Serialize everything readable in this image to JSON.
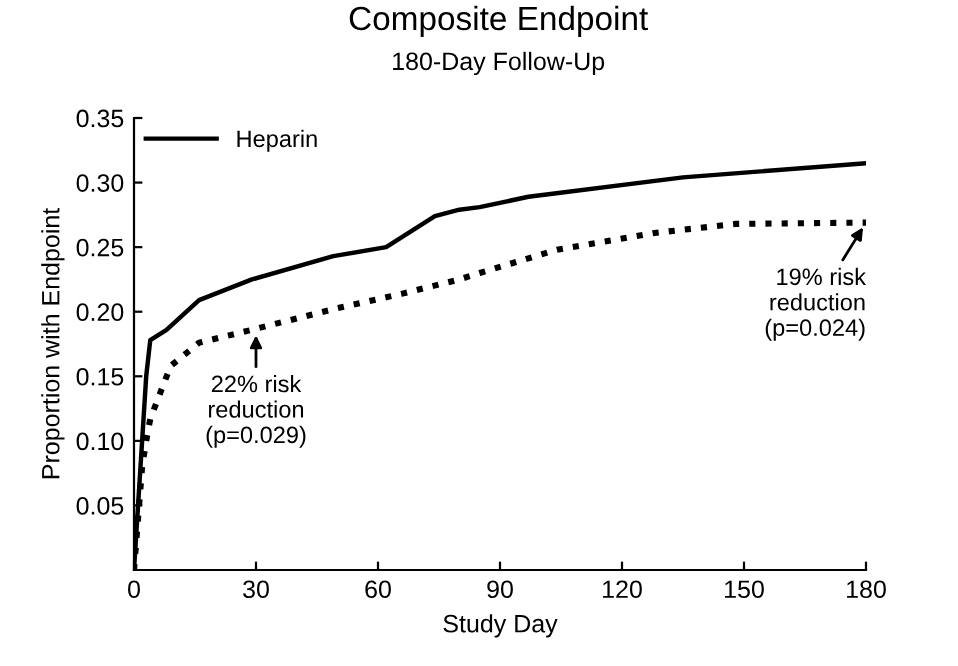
{
  "chart_data": {
    "type": "line",
    "title": "Composite Endpoint",
    "subtitle": "180-Day Follow-Up",
    "xlabel": "Study Day",
    "ylabel": "Proportion with Endpoint",
    "series": [
      {
        "name": "Heparin",
        "color": "#000000",
        "line_style": "solid",
        "x": [
          0,
          1,
          2,
          3,
          4,
          8,
          16,
          29,
          49,
          62,
          74,
          80,
          85,
          97,
          135,
          180
        ],
        "values": [
          0,
          0.05,
          0.1,
          0.15,
          0.178,
          0.186,
          0.209,
          0.225,
          0.243,
          0.25,
          0.274,
          0.279,
          0.281,
          0.289,
          0.304,
          0.315
        ]
      },
      {
        "color": "#000000",
        "line_style": "dotted",
        "x": [
          0,
          1,
          2,
          3,
          4,
          9,
          16,
          29,
          49,
          66,
          80,
          85,
          104,
          128,
          148,
          180
        ],
        "values": [
          0,
          0.04,
          0.08,
          0.1,
          0.117,
          0.158,
          0.176,
          0.186,
          0.202,
          0.214,
          0.225,
          0.23,
          0.248,
          0.261,
          0.268,
          0.269
        ]
      }
    ],
    "xlim": [
      0,
      180
    ],
    "xticks": [
      0,
      30,
      60,
      90,
      120,
      150,
      180
    ],
    "ylim": [
      0,
      0.35
    ],
    "yticks": [
      0.05,
      {
        "value": 0.1,
        "label": "0.10"
      },
      0.15,
      {
        "value": 0.2,
        "label": "0.20"
      },
      0.25,
      {
        "value": 0.3,
        "label": "0.30"
      },
      0.35
    ],
    "grid": false,
    "legend": "top left",
    "marker": "none",
    "annotations": [
      {
        "text": "22% risk\nreduction\n(p=0.029)",
        "x": 30,
        "y": 0.186
      },
      {
        "text": "19% risk\nreduction\n(p=0.024)",
        "x": 180,
        "y": 0.269
      }
    ]
  }
}
